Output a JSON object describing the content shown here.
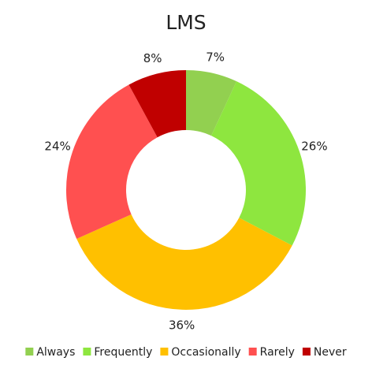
{
  "chart_data": {
    "type": "donut",
    "title": "LMS",
    "categories": [
      "Always",
      "Frequently",
      "Occasionally",
      "Rarely",
      "Never"
    ],
    "values": [
      7,
      26,
      36,
      24,
      8
    ],
    "value_labels": [
      "7%",
      "26%",
      "36%",
      "24%",
      "8%"
    ],
    "colors": [
      "#92d050",
      "#8ee63f",
      "#ffc000",
      "#ff5050",
      "#c00000"
    ],
    "legend": "bottom"
  }
}
